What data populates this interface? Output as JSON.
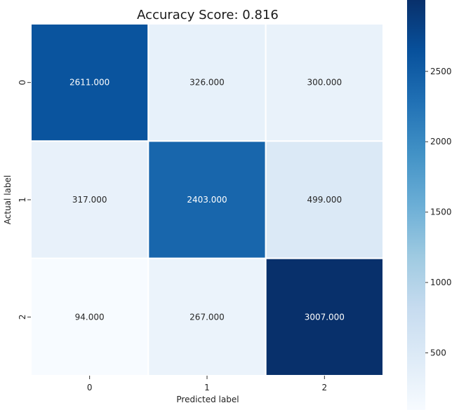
{
  "chart_data": {
    "type": "heatmap",
    "title": "Accuracy Score: 0.816",
    "xlabel": "Predicted label",
    "ylabel": "Actual label",
    "x_categories": [
      "0",
      "1",
      "2"
    ],
    "y_categories": [
      "0",
      "1",
      "2"
    ],
    "values": [
      [
        2611,
        326,
        300
      ],
      [
        317,
        2403,
        499
      ],
      [
        94,
        267,
        3007
      ]
    ],
    "value_labels": [
      [
        "2611.000",
        "326.000",
        "300.000"
      ],
      [
        "317.000",
        "2403.000",
        "499.000"
      ],
      [
        "94.000",
        "267.000",
        "3007.000"
      ]
    ],
    "colormap": "Blues",
    "colorbar": {
      "ticks": [
        500,
        1000,
        1500,
        2000,
        2500
      ],
      "tick_labels": [
        "500",
        "1000",
        "1500",
        "2000",
        "2500"
      ]
    }
  }
}
